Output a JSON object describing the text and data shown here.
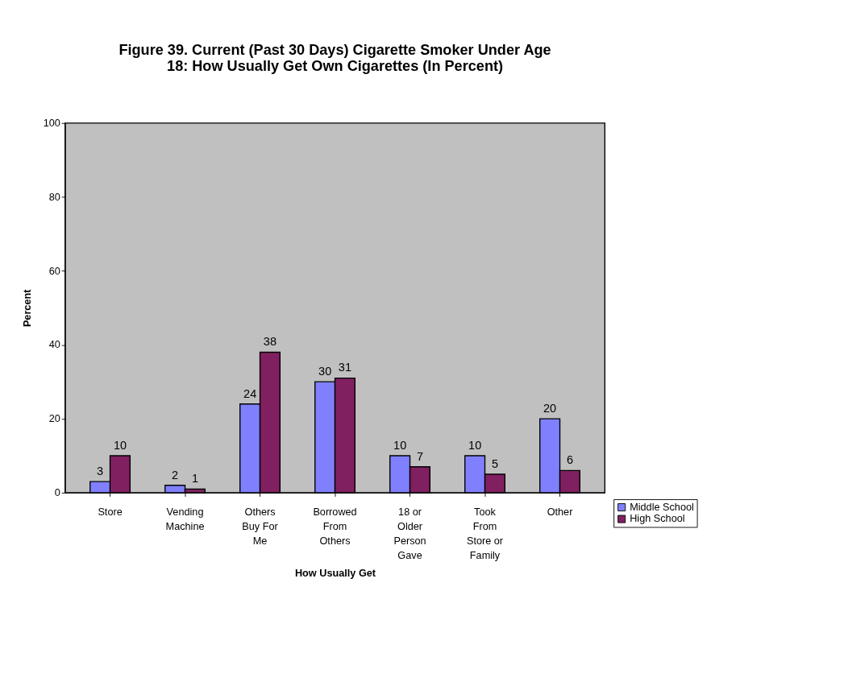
{
  "chart_data": {
    "type": "bar",
    "title": [
      "Figure 39.  Current (Past 30 Days) Cigarette Smoker Under Age",
      "18:  How Usually Get Own Cigarettes (In Percent)"
    ],
    "xlabel": "How Usually Get",
    "ylabel": "Percent",
    "categories": [
      "Store",
      "Vending Machine",
      "Others Buy For Me",
      "Borrowed From Others",
      "18 or Older Person Gave",
      "Took From Store or Family",
      "Other"
    ],
    "series": [
      {
        "name": "Middle School",
        "color": "#8080ff",
        "values": [
          3,
          2,
          24,
          30,
          10,
          10,
          20
        ]
      },
      {
        "name": "High School",
        "color": "#802060",
        "values": [
          10,
          1,
          38,
          31,
          7,
          5,
          6
        ]
      }
    ],
    "ylim": [
      0,
      100
    ],
    "yticks": [
      0,
      20,
      40,
      60,
      80,
      100
    ],
    "grid": false,
    "legend": "right",
    "data_labels": true
  }
}
